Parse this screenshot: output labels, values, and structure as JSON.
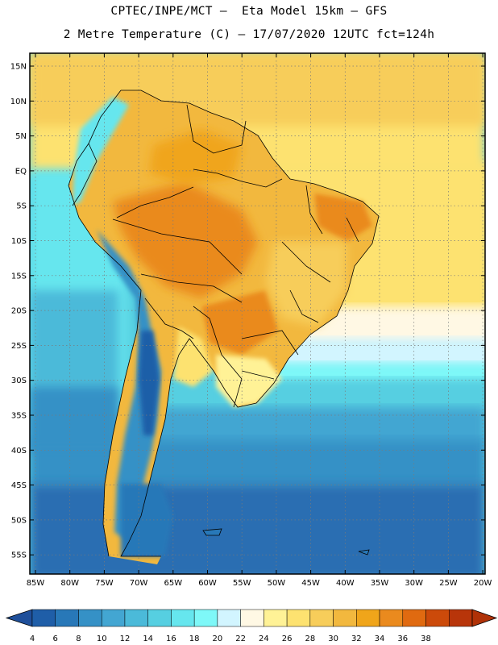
{
  "header": {
    "line1": "CPTEC/INPE/MCT –  Eta Model 15km – GFS",
    "line2": "2 Metre Temperature (C) – 17/07/2020 12UTC fct=124h"
  },
  "axes": {
    "lat_labels": [
      "15N",
      "10N",
      "5N",
      "EQ",
      "5S",
      "10S",
      "15S",
      "20S",
      "25S",
      "30S",
      "35S",
      "40S",
      "45S",
      "50S",
      "55S"
    ],
    "lon_labels": [
      "85W",
      "80W",
      "75W",
      "70W",
      "65W",
      "60W",
      "55W",
      "50W",
      "45W",
      "40W",
      "35W",
      "30W",
      "25W",
      "20W"
    ]
  },
  "colorbar": {
    "labels": [
      "4",
      "6",
      "8",
      "10",
      "12",
      "14",
      "16",
      "18",
      "20",
      "22",
      "24",
      "26",
      "28",
      "30",
      "32",
      "34",
      "36",
      "38"
    ],
    "colors": [
      "#1f5ea8",
      "#2878b8",
      "#3591c6",
      "#43a6d2",
      "#4bbad9",
      "#56cfe1",
      "#66e6ee",
      "#7ef8f8",
      "#d2f5ff",
      "#fff8e4",
      "#fff296",
      "#fde270",
      "#f7cd5a",
      "#f2b83e",
      "#f0a51a",
      "#ea8a1e",
      "#e06a10",
      "#cc4a0a",
      "#b8350a"
    ],
    "under_color": "#1f4f9a",
    "over_color": "#b03208"
  }
}
